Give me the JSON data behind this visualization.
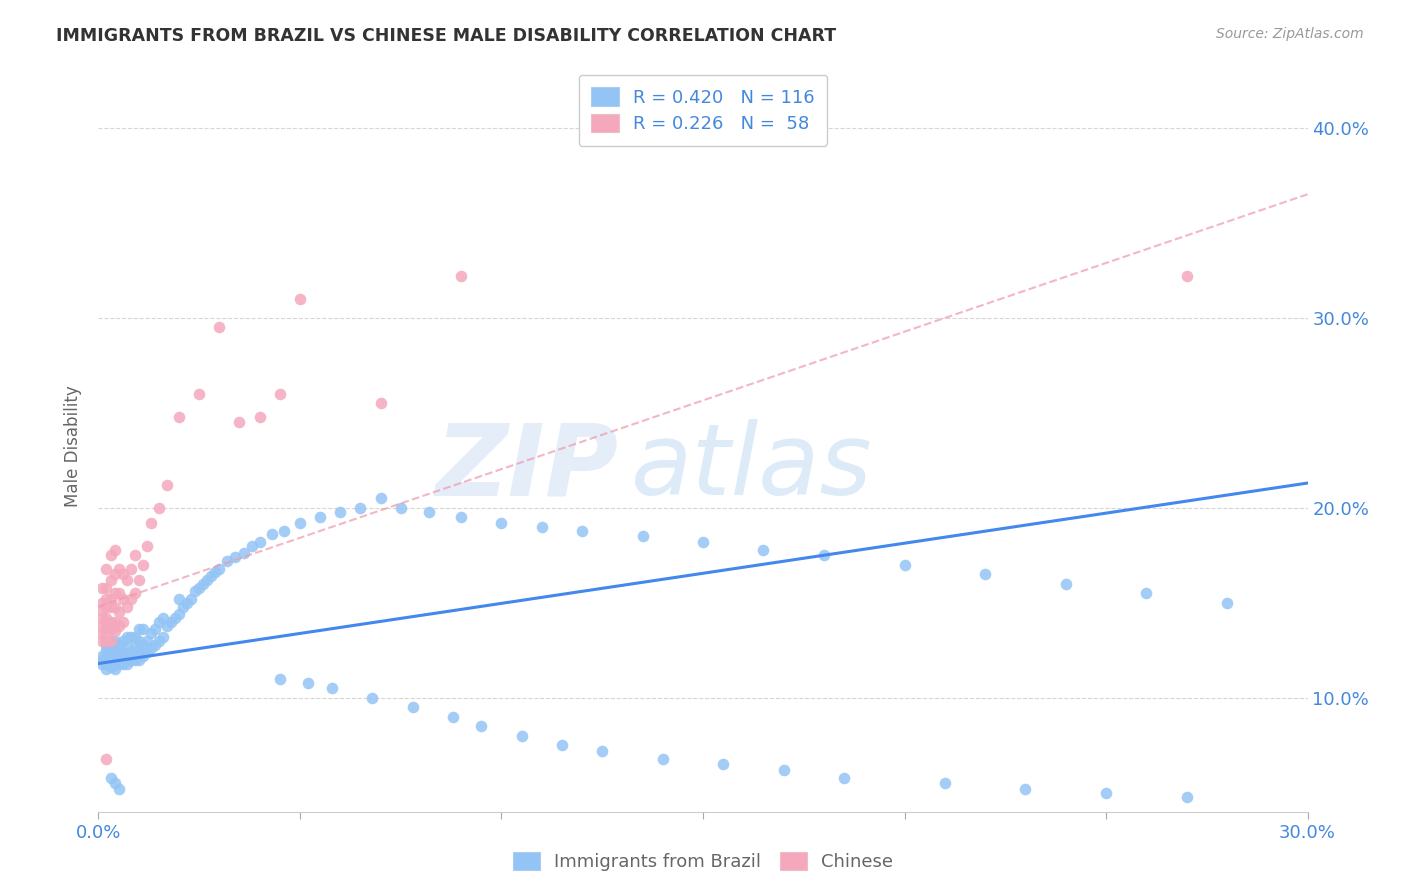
{
  "title": "IMMIGRANTS FROM BRAZIL VS CHINESE MALE DISABILITY CORRELATION CHART",
  "source": "Source: ZipAtlas.com",
  "ylabel": "Male Disability",
  "color_blue": "#93c4f5",
  "color_pink": "#f5a8bc",
  "color_blue_line": "#4488ee",
  "color_pink_line": "#ee99aa",
  "color_blue_text": "#4488dd",
  "xmin": 0.0,
  "xmax": 0.3,
  "ymin": 0.04,
  "ymax": 0.425,
  "xticks": [
    0.0,
    0.05,
    0.1,
    0.15,
    0.2,
    0.25,
    0.3
  ],
  "yticks": [
    0.1,
    0.2,
    0.3,
    0.4
  ],
  "brazil_line_x": [
    0.0,
    0.3
  ],
  "brazil_line_y": [
    0.118,
    0.213
  ],
  "chinese_line_x": [
    0.0,
    0.3
  ],
  "chinese_line_y": [
    0.148,
    0.365
  ],
  "brazil_x": [
    0.001,
    0.001,
    0.001,
    0.002,
    0.002,
    0.002,
    0.002,
    0.002,
    0.002,
    0.003,
    0.003,
    0.003,
    0.003,
    0.003,
    0.004,
    0.004,
    0.004,
    0.004,
    0.004,
    0.005,
    0.005,
    0.005,
    0.005,
    0.006,
    0.006,
    0.006,
    0.006,
    0.007,
    0.007,
    0.007,
    0.007,
    0.008,
    0.008,
    0.008,
    0.009,
    0.009,
    0.009,
    0.01,
    0.01,
    0.01,
    0.01,
    0.011,
    0.011,
    0.011,
    0.012,
    0.012,
    0.013,
    0.013,
    0.014,
    0.014,
    0.015,
    0.015,
    0.016,
    0.016,
    0.017,
    0.018,
    0.019,
    0.02,
    0.02,
    0.021,
    0.022,
    0.023,
    0.024,
    0.025,
    0.026,
    0.027,
    0.028,
    0.029,
    0.03,
    0.032,
    0.034,
    0.036,
    0.038,
    0.04,
    0.043,
    0.046,
    0.05,
    0.055,
    0.06,
    0.065,
    0.07,
    0.075,
    0.082,
    0.09,
    0.1,
    0.11,
    0.12,
    0.135,
    0.15,
    0.165,
    0.18,
    0.2,
    0.22,
    0.24,
    0.26,
    0.28,
    0.045,
    0.052,
    0.058,
    0.068,
    0.078,
    0.088,
    0.095,
    0.105,
    0.115,
    0.125,
    0.14,
    0.155,
    0.17,
    0.185,
    0.21,
    0.23,
    0.25,
    0.27,
    0.003,
    0.004,
    0.005
  ],
  "brazil_y": [
    0.12,
    0.118,
    0.122,
    0.115,
    0.118,
    0.122,
    0.125,
    0.128,
    0.13,
    0.116,
    0.119,
    0.122,
    0.126,
    0.13,
    0.115,
    0.118,
    0.122,
    0.126,
    0.13,
    0.118,
    0.12,
    0.124,
    0.128,
    0.118,
    0.12,
    0.124,
    0.13,
    0.118,
    0.122,
    0.128,
    0.132,
    0.12,
    0.124,
    0.132,
    0.12,
    0.126,
    0.132,
    0.12,
    0.125,
    0.13,
    0.136,
    0.122,
    0.128,
    0.136,
    0.124,
    0.13,
    0.126,
    0.134,
    0.128,
    0.136,
    0.13,
    0.14,
    0.132,
    0.142,
    0.138,
    0.14,
    0.142,
    0.144,
    0.152,
    0.148,
    0.15,
    0.152,
    0.156,
    0.158,
    0.16,
    0.162,
    0.164,
    0.166,
    0.168,
    0.172,
    0.174,
    0.176,
    0.18,
    0.182,
    0.186,
    0.188,
    0.192,
    0.195,
    0.198,
    0.2,
    0.205,
    0.2,
    0.198,
    0.195,
    0.192,
    0.19,
    0.188,
    0.185,
    0.182,
    0.178,
    0.175,
    0.17,
    0.165,
    0.16,
    0.155,
    0.15,
    0.11,
    0.108,
    0.105,
    0.1,
    0.095,
    0.09,
    0.085,
    0.08,
    0.075,
    0.072,
    0.068,
    0.065,
    0.062,
    0.058,
    0.055,
    0.052,
    0.05,
    0.048,
    0.058,
    0.055,
    0.052
  ],
  "chinese_x": [
    0.001,
    0.001,
    0.001,
    0.001,
    0.001,
    0.001,
    0.001,
    0.002,
    0.002,
    0.002,
    0.002,
    0.002,
    0.002,
    0.002,
    0.002,
    0.003,
    0.003,
    0.003,
    0.003,
    0.003,
    0.003,
    0.003,
    0.004,
    0.004,
    0.004,
    0.004,
    0.004,
    0.004,
    0.005,
    0.005,
    0.005,
    0.005,
    0.006,
    0.006,
    0.006,
    0.007,
    0.007,
    0.008,
    0.008,
    0.009,
    0.009,
    0.01,
    0.011,
    0.012,
    0.013,
    0.015,
    0.017,
    0.02,
    0.025,
    0.03,
    0.035,
    0.04,
    0.045,
    0.05,
    0.07,
    0.09,
    0.27,
    0.002
  ],
  "chinese_y": [
    0.13,
    0.134,
    0.138,
    0.142,
    0.146,
    0.15,
    0.158,
    0.13,
    0.134,
    0.138,
    0.142,
    0.148,
    0.152,
    0.158,
    0.168,
    0.13,
    0.136,
    0.14,
    0.148,
    0.152,
    0.162,
    0.175,
    0.135,
    0.14,
    0.148,
    0.155,
    0.165,
    0.178,
    0.138,
    0.145,
    0.155,
    0.168,
    0.14,
    0.152,
    0.165,
    0.148,
    0.162,
    0.152,
    0.168,
    0.155,
    0.175,
    0.162,
    0.17,
    0.18,
    0.192,
    0.2,
    0.212,
    0.248,
    0.26,
    0.295,
    0.245,
    0.248,
    0.26,
    0.31,
    0.255,
    0.322,
    0.322,
    0.068
  ]
}
